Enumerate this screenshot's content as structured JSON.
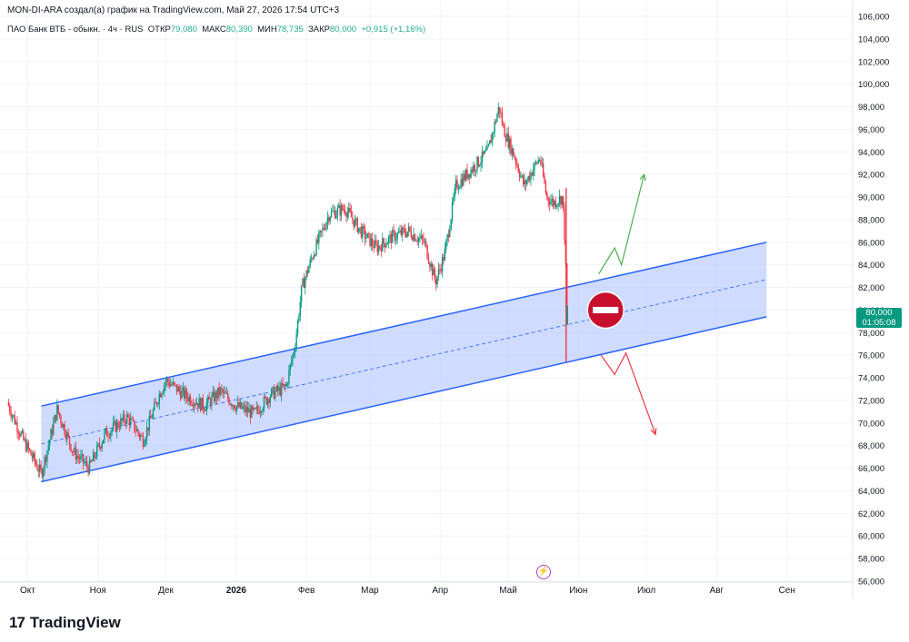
{
  "header": {
    "attribution": "MON-DI-ARA создал(а) график на TradingView.com, Май 27, 2026 17:54 UTC+3"
  },
  "legend": {
    "symbol": "ПАО Банк ВТБ - обыкн. · 4ч · RUS",
    "open_label": "ОТКР",
    "open": "79,080",
    "high_label": "МАКС",
    "high": "80,390",
    "low_label": "МИН",
    "low": "78,735",
    "close_label": "ЗАКР",
    "close": "80,000",
    "change": "+0,915 (+1,16%)"
  },
  "price_tag": {
    "price": "80,000",
    "countdown": "01:05:08"
  },
  "footer": {
    "logo_text": "TradingView"
  },
  "colors": {
    "up": "#089981",
    "down": "#f23645",
    "channel": "#2962ff",
    "channel_fill": "#bbccff",
    "label_bg": "#089981"
  },
  "chart_data": {
    "type": "candlestick",
    "instrument": "ПАО Банк ВТБ",
    "timeframe": "4ч",
    "y_axis": {
      "ticks": [
        "106,000",
        "104,000",
        "102,000",
        "100,000",
        "98,000",
        "96,000",
        "94,000",
        "92,000",
        "90,000",
        "88,000",
        "86,000",
        "84,000",
        "82,000",
        "80,000",
        "78,000",
        "76,000",
        "74,000",
        "72,000",
        "70,000",
        "68,000",
        "66,000",
        "64,000",
        "62,000",
        "60,000",
        "58,000",
        "56,000"
      ],
      "range": [
        56,
        106
      ]
    },
    "x_axis": {
      "labels": [
        "Окт",
        "Ноя",
        "Дек",
        "2026",
        "Фев",
        "Мар",
        "Апр",
        "Май",
        "Июн",
        "Июл",
        "Авг",
        "Сен"
      ],
      "range": [
        "2025-09-22",
        "2026-09-30"
      ]
    },
    "price_path": [
      [
        "2025-09-22",
        71.8
      ],
      [
        "2025-09-29",
        68.5
      ],
      [
        "2025-10-07",
        65.5
      ],
      [
        "2025-10-14",
        71.2
      ],
      [
        "2025-10-21",
        67.5
      ],
      [
        "2025-10-28",
        66.0
      ],
      [
        "2025-11-04",
        69.0
      ],
      [
        "2025-11-14",
        70.5
      ],
      [
        "2025-11-21",
        68.5
      ],
      [
        "2025-11-28",
        72.5
      ],
      [
        "2025-12-01",
        73.8
      ],
      [
        "2025-12-09",
        72.5
      ],
      [
        "2025-12-18",
        71.5
      ],
      [
        "2025-12-25",
        72.8
      ],
      [
        "2026-01-01",
        71.5
      ],
      [
        "2026-01-09",
        70.8
      ],
      [
        "2026-01-16",
        72.5
      ],
      [
        "2026-01-23",
        73.2
      ],
      [
        "2026-01-27",
        77.0
      ],
      [
        "2026-01-30",
        82.0
      ],
      [
        "2026-02-04",
        85.0
      ],
      [
        "2026-02-11",
        88.5
      ],
      [
        "2026-02-18",
        89.0
      ],
      [
        "2026-02-25",
        87.0
      ],
      [
        "2026-03-04",
        85.5
      ],
      [
        "2026-03-11",
        86.5
      ],
      [
        "2026-03-18",
        87.0
      ],
      [
        "2026-03-25",
        86.0
      ],
      [
        "2026-03-30",
        82.5
      ],
      [
        "2026-04-03",
        85.0
      ],
      [
        "2026-04-08",
        91.0
      ],
      [
        "2026-04-15",
        92.5
      ],
      [
        "2026-04-22",
        94.0
      ],
      [
        "2026-04-27",
        98.0
      ],
      [
        "2026-04-29",
        96.0
      ],
      [
        "2026-05-04",
        93.5
      ],
      [
        "2026-05-08",
        91.0
      ],
      [
        "2026-05-12",
        92.5
      ],
      [
        "2026-05-15",
        93.5
      ],
      [
        "2026-05-18",
        90.0
      ],
      [
        "2026-05-21",
        89.5
      ],
      [
        "2026-05-25",
        90.0
      ],
      [
        "2026-05-26",
        86.0
      ],
      [
        "2026-05-27",
        80.0
      ]
    ],
    "last_price": 80.0,
    "channel": {
      "start": [
        "2025-10-07",
        71.5,
        64.8
      ],
      "end": [
        "2026-08-23",
        86.0,
        79.4
      ]
    },
    "annotations": [
      {
        "type": "arrow-up",
        "points": [
          [
            "2026-06-10",
            83.2
          ],
          [
            "2026-06-17",
            85.5
          ],
          [
            "2026-06-20",
            84.0
          ],
          [
            "2026-06-30",
            92.0
          ]
        ]
      },
      {
        "type": "arrow-down",
        "points": [
          [
            "2026-06-11",
            76.0
          ],
          [
            "2026-06-17",
            74.3
          ],
          [
            "2026-06-22",
            76.2
          ],
          [
            "2026-07-05",
            69.0
          ]
        ]
      },
      {
        "type": "stop-sign",
        "at": [
          "2026-06-13",
          80.0
        ]
      }
    ]
  }
}
